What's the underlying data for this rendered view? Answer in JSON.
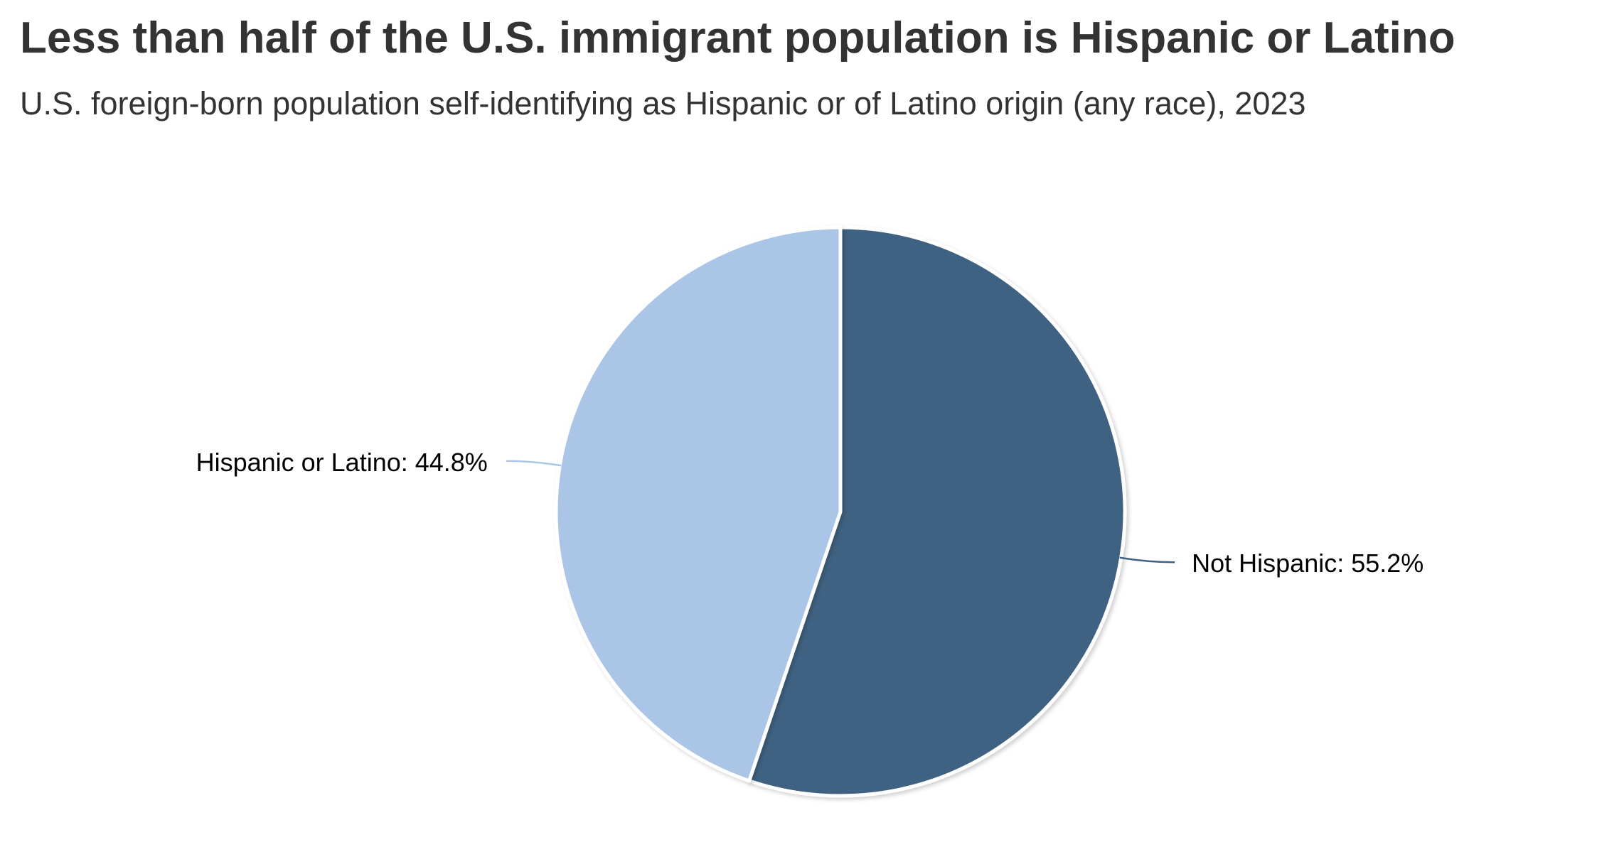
{
  "chart_data": {
    "type": "pie",
    "title": "Less than half of the U.S. immigrant population is Hispanic or Latino",
    "subtitle": "U.S. foreign-born population self-identifying as Hispanic or of Latino origin (any race), 2023",
    "start_angle": "top",
    "direction": "clockwise",
    "slices": [
      {
        "label": "Not Hispanic: 55.2%",
        "name": "Not Hispanic",
        "value": 55.2,
        "color": "#3f6282"
      },
      {
        "label": "Hispanic or Latino: 44.8%",
        "name": "Hispanic or Latino",
        "value": 44.8,
        "color": "#aac5e5"
      }
    ]
  }
}
